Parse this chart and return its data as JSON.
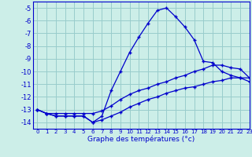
{
  "title": "Graphe des températures (°c)",
  "bg_color": "#cceee8",
  "grid_color": "#99cccc",
  "line_color": "#0000cc",
  "xlim": [
    -0.5,
    23
  ],
  "ylim": [
    -14.5,
    -4.5
  ],
  "yticks": [
    -14,
    -13,
    -12,
    -11,
    -10,
    -9,
    -8,
    -7,
    -6,
    -5
  ],
  "xticks": [
    0,
    1,
    2,
    3,
    4,
    5,
    6,
    7,
    8,
    9,
    10,
    11,
    12,
    13,
    14,
    15,
    16,
    17,
    18,
    19,
    20,
    21,
    22,
    23
  ],
  "hours": [
    0,
    1,
    2,
    3,
    4,
    5,
    6,
    7,
    8,
    9,
    10,
    11,
    12,
    13,
    14,
    15,
    16,
    17,
    18,
    19,
    20,
    21,
    22,
    23
  ],
  "temp_main": [
    -13.0,
    -13.3,
    -13.5,
    -13.5,
    -13.5,
    -13.5,
    -14.0,
    -13.5,
    -11.5,
    -10.0,
    -8.5,
    -7.3,
    -6.2,
    -5.2,
    -5.0,
    -5.7,
    -6.5,
    -7.5,
    -9.2,
    -9.3,
    -10.0,
    -10.3,
    -10.5,
    -10.8
  ],
  "temp_low": [
    -13.0,
    -13.3,
    -13.5,
    -13.5,
    -13.5,
    -13.5,
    -14.0,
    -13.8,
    -13.5,
    -13.2,
    -12.8,
    -12.5,
    -12.2,
    -12.0,
    -11.7,
    -11.5,
    -11.3,
    -11.2,
    -11.0,
    -10.8,
    -10.7,
    -10.5,
    -10.5,
    -10.5
  ],
  "temp_high": [
    -13.0,
    -13.3,
    -13.3,
    -13.3,
    -13.3,
    -13.3,
    -13.3,
    -13.1,
    -12.7,
    -12.2,
    -11.8,
    -11.5,
    -11.3,
    -11.0,
    -10.8,
    -10.5,
    -10.3,
    -10.0,
    -9.8,
    -9.5,
    -9.5,
    -9.7,
    -9.8,
    -10.5
  ]
}
